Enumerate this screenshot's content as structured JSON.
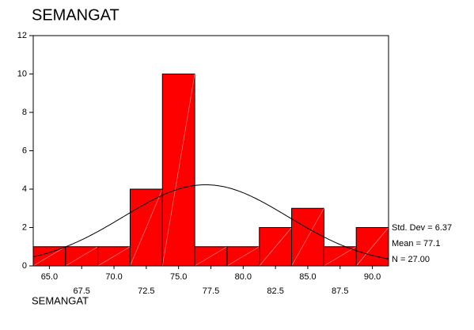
{
  "chart_data": {
    "type": "histogram",
    "title": "SEMANGAT",
    "x_label": "SEMANGAT",
    "bins": [
      63.75,
      66.25,
      68.75,
      71.25,
      73.75,
      76.25,
      78.75,
      81.25,
      83.75,
      86.25,
      88.75,
      91.25
    ],
    "values": [
      1,
      1,
      1,
      4,
      10,
      1,
      1,
      2,
      3,
      1,
      2
    ],
    "color": "#ff0000",
    "xlim": [
      63.75,
      91.25
    ],
    "xticks": [
      {
        "value": 65,
        "label": "65.0"
      },
      67.5,
      {
        "value": 70,
        "label": "70.0"
      },
      72.5,
      {
        "value": 75,
        "label": "75.0"
      },
      77.5,
      {
        "value": 80,
        "label": "80.0"
      },
      82.5,
      {
        "value": 85,
        "label": "85.0"
      },
      87.5,
      {
        "value": 90,
        "label": "90.0"
      }
    ],
    "ylim": [
      0,
      12
    ],
    "yticks": [
      0,
      2,
      4,
      6,
      8,
      10,
      12
    ],
    "stats": [
      {
        "label": "Std. Dev = 6.37",
        "value": 6.37
      },
      {
        "label": "Mean = 77.1",
        "value": 77.1
      },
      {
        "label": "N = 27.00",
        "value": 27
      }
    ]
  }
}
